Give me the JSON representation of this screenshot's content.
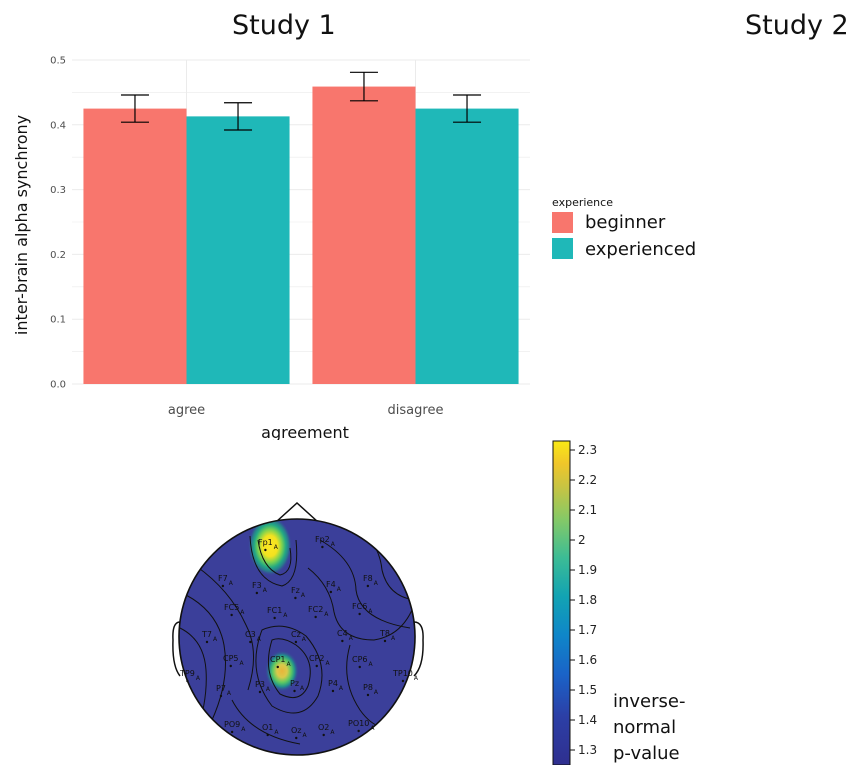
{
  "titles": {
    "study1": "Study 1",
    "study2": "Study 2"
  },
  "chart_data": [
    {
      "type": "bar",
      "title": "Study 1",
      "categories": [
        "agree",
        "disagree"
      ],
      "series": [
        {
          "name": "beginner",
          "values": [
            0.425,
            0.459
          ],
          "errors": [
            0.021,
            0.022
          ],
          "color": "#F8766D"
        },
        {
          "name": "experienced",
          "values": [
            0.413,
            0.425
          ],
          "errors": [
            0.021,
            0.021
          ],
          "color": "#1FB8B8"
        }
      ],
      "xlabel": "agreement",
      "ylabel": "inter-brain alpha synchrony",
      "ylim": [
        0,
        0.5
      ],
      "yticks": [
        "0.0",
        "0.1",
        "0.2",
        "0.3",
        "0.4",
        "0.5"
      ],
      "grid": true,
      "legend": {
        "title": "experience",
        "placement": "right"
      }
    },
    {
      "type": "heatmap",
      "subtype": "scalp-topography",
      "electrodes": [
        {
          "label": "Fp1",
          "sub": "A"
        },
        {
          "label": "Fp2",
          "sub": "A"
        },
        {
          "label": "F7",
          "sub": "A"
        },
        {
          "label": "F3",
          "sub": "A"
        },
        {
          "label": "Fz",
          "sub": "A"
        },
        {
          "label": "F4",
          "sub": "A"
        },
        {
          "label": "F8",
          "sub": "A"
        },
        {
          "label": "FC5",
          "sub": "A"
        },
        {
          "label": "FC1",
          "sub": "A"
        },
        {
          "label": "FC2",
          "sub": "A"
        },
        {
          "label": "FC6",
          "sub": "A"
        },
        {
          "label": "T7",
          "sub": "A"
        },
        {
          "label": "C3",
          "sub": "A"
        },
        {
          "label": "Cz",
          "sub": "A"
        },
        {
          "label": "C4",
          "sub": "A"
        },
        {
          "label": "T8",
          "sub": "A"
        },
        {
          "label": "TP9",
          "sub": "A"
        },
        {
          "label": "CP5",
          "sub": "A"
        },
        {
          "label": "CP1",
          "sub": "A"
        },
        {
          "label": "CP2",
          "sub": "A"
        },
        {
          "label": "CP6",
          "sub": "A"
        },
        {
          "label": "TP10",
          "sub": "A"
        },
        {
          "label": "P7",
          "sub": "A"
        },
        {
          "label": "P3",
          "sub": "A"
        },
        {
          "label": "Pz",
          "sub": "A"
        },
        {
          "label": "P4",
          "sub": "A"
        },
        {
          "label": "P8",
          "sub": "A"
        },
        {
          "label": "PO9",
          "sub": "A"
        },
        {
          "label": "O1",
          "sub": "A"
        },
        {
          "label": "Oz",
          "sub": "A"
        },
        {
          "label": "O2",
          "sub": "A"
        },
        {
          "label": "PO10",
          "sub": "A"
        }
      ],
      "colorbar": {
        "range": [
          1.25,
          2.33
        ],
        "ticks": [
          "2.3",
          "2.2",
          "2.1",
          "2",
          "1.9",
          "1.8",
          "1.7",
          "1.6",
          "1.5",
          "1.4",
          "1.3"
        ],
        "label_lines": [
          "inverse-",
          "normal",
          "p-value"
        ]
      }
    }
  ]
}
